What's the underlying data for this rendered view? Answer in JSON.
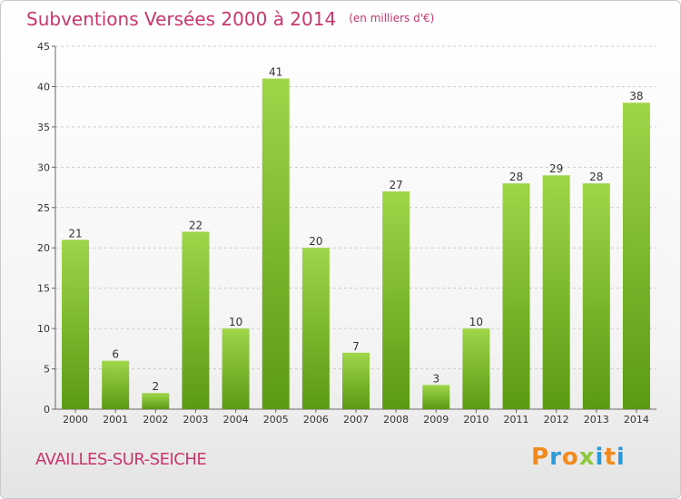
{
  "title": "Subventions Versées 2000 à 2014",
  "subtitle": "(en milliers d'€)",
  "commune": "AVAILLES-SUR-SEICHE",
  "brand": {
    "letters": [
      "P",
      "r",
      "o",
      "x",
      "i",
      "t",
      "i"
    ],
    "colors": [
      "#f08a1e",
      "#2a9ad8",
      "#f08a1e",
      "#8dc63f",
      "#2a9ad8",
      "#f08a1e",
      "#2a9ad8"
    ]
  },
  "colors": {
    "title": "#c8366e",
    "bar_light": "#9fd64a",
    "bar_dark": "#5a9a12",
    "grid": "#cccccc"
  },
  "chart_data": {
    "type": "bar",
    "categories": [
      "2000",
      "2001",
      "2002",
      "2003",
      "2004",
      "2005",
      "2006",
      "2007",
      "2008",
      "2009",
      "2010",
      "2011",
      "2012",
      "2013",
      "2014"
    ],
    "values": [
      21,
      6,
      2,
      22,
      10,
      41,
      20,
      7,
      27,
      3,
      10,
      28,
      29,
      28,
      38
    ],
    "ylim": [
      0,
      45
    ],
    "yticks": [
      0,
      5,
      10,
      15,
      20,
      25,
      30,
      35,
      40,
      45
    ],
    "grid": true,
    "xlabel": "",
    "ylabel": ""
  }
}
